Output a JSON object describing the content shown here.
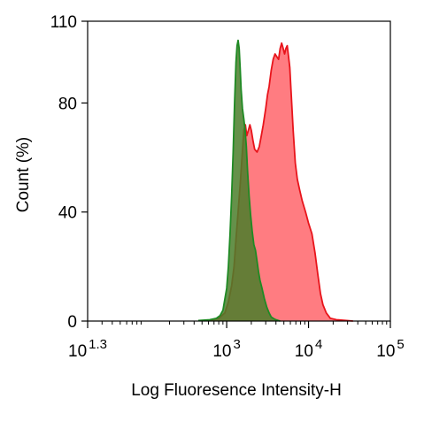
{
  "chart_data": {
    "type": "area",
    "xlabel": "Log Fluoresence Intensity-H",
    "ylabel": "Count  (%)",
    "x_scale": "log",
    "xlim": [
      20,
      100000
    ],
    "ylim": [
      0,
      110
    ],
    "grid": false,
    "legend": "none",
    "x_ticks": [
      {
        "value": 20,
        "base": "10",
        "exp": "1.3"
      },
      {
        "value": 1000,
        "base": "10",
        "exp": "3"
      },
      {
        "value": 10000,
        "base": "10",
        "exp": "4"
      },
      {
        "value": 100000,
        "base": "10",
        "exp": "5"
      }
    ],
    "y_ticks": [
      {
        "value": 0,
        "label": "0"
      },
      {
        "value": 40,
        "label": "40"
      },
      {
        "value": 80,
        "label": "80"
      },
      {
        "value": 110,
        "label": "110"
      }
    ],
    "series": [
      {
        "color": "#e8141b",
        "fill": "#ff6e73",
        "points": [
          [
            630,
            0.3
          ],
          [
            800,
            1
          ],
          [
            950,
            3
          ],
          [
            1050,
            7
          ],
          [
            1150,
            13
          ],
          [
            1230,
            20
          ],
          [
            1300,
            30
          ],
          [
            1380,
            40
          ],
          [
            1460,
            50
          ],
          [
            1540,
            60
          ],
          [
            1620,
            70
          ],
          [
            1690,
            72
          ],
          [
            1760,
            68
          ],
          [
            1840,
            70
          ],
          [
            1920,
            72
          ],
          [
            2000,
            70
          ],
          [
            2100,
            66
          ],
          [
            2200,
            63
          ],
          [
            2350,
            62
          ],
          [
            2500,
            64
          ],
          [
            2650,
            68
          ],
          [
            2800,
            72
          ],
          [
            3000,
            78
          ],
          [
            3150,
            83
          ],
          [
            3300,
            86
          ],
          [
            3500,
            92
          ],
          [
            3700,
            96
          ],
          [
            3900,
            98
          ],
          [
            4100,
            97
          ],
          [
            4300,
            96
          ],
          [
            4500,
            100
          ],
          [
            4700,
            102
          ],
          [
            4900,
            100
          ],
          [
            5100,
            98
          ],
          [
            5300,
            100
          ],
          [
            5500,
            101
          ],
          [
            5700,
            97
          ],
          [
            5900,
            93
          ],
          [
            6100,
            85
          ],
          [
            6500,
            70
          ],
          [
            6900,
            58
          ],
          [
            7300,
            52
          ],
          [
            7800,
            48
          ],
          [
            8400,
            44
          ],
          [
            9200,
            40
          ],
          [
            10000,
            36
          ],
          [
            11000,
            32
          ],
          [
            12000,
            25
          ],
          [
            13000,
            17
          ],
          [
            14000,
            10
          ],
          [
            15000,
            6
          ],
          [
            16500,
            3
          ],
          [
            18500,
            1
          ],
          [
            22000,
            0.5
          ],
          [
            27000,
            0.3
          ],
          [
            35000,
            0
          ]
        ]
      },
      {
        "color": "#1f8a24",
        "fill": "#4a7e2a",
        "points": [
          [
            450,
            0.2
          ],
          [
            620,
            0.5
          ],
          [
            750,
            1
          ],
          [
            830,
            2
          ],
          [
            900,
            4
          ],
          [
            950,
            8
          ],
          [
            1000,
            12
          ],
          [
            1050,
            20
          ],
          [
            1100,
            32
          ],
          [
            1150,
            46
          ],
          [
            1200,
            62
          ],
          [
            1250,
            80
          ],
          [
            1300,
            95
          ],
          [
            1340,
            101
          ],
          [
            1380,
            103
          ],
          [
            1420,
            100
          ],
          [
            1460,
            93
          ],
          [
            1500,
            85
          ],
          [
            1560,
            78
          ],
          [
            1620,
            74
          ],
          [
            1680,
            70
          ],
          [
            1740,
            64
          ],
          [
            1800,
            55
          ],
          [
            1880,
            46
          ],
          [
            1960,
            39
          ],
          [
            2050,
            33
          ],
          [
            2150,
            28
          ],
          [
            2250,
            26
          ],
          [
            2350,
            22
          ],
          [
            2450,
            18
          ],
          [
            2550,
            15
          ],
          [
            2700,
            12
          ],
          [
            2900,
            8
          ],
          [
            3100,
            5
          ],
          [
            3300,
            3
          ],
          [
            3500,
            1.5
          ],
          [
            3700,
            1
          ],
          [
            4000,
            0.5
          ],
          [
            4500,
            0
          ]
        ]
      }
    ]
  }
}
